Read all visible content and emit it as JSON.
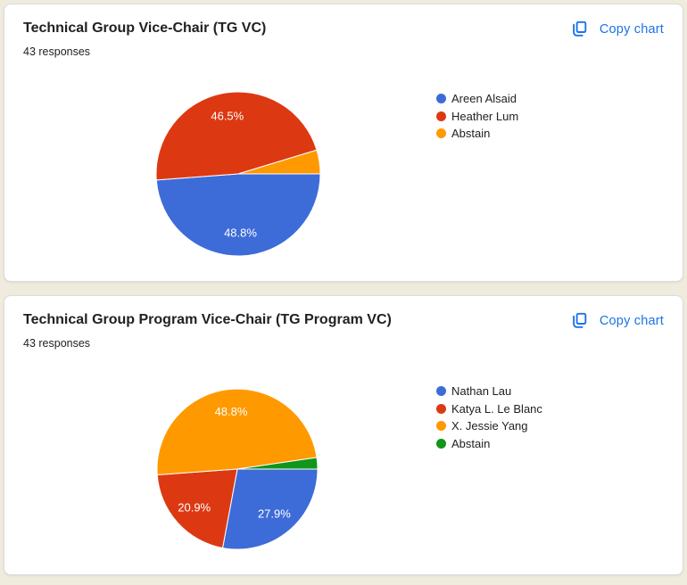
{
  "ui": {
    "page_background": "#F0ECDD",
    "card_background": "#FFFFFF",
    "card_border_color": "#DADCE0",
    "accent_blue": "#1A73E8",
    "title_color": "#202124",
    "slice_label_color": "#FFFFFF"
  },
  "cards": [
    {
      "title": "Technical Group Vice-Chair (TG VC)",
      "responses_text": "43 responses",
      "copy_button_label": "Copy chart"
    },
    {
      "title": "Technical Group Program Vice-Chair (TG Program VC)",
      "responses_text": "43 responses",
      "copy_button_label": "Copy chart"
    }
  ],
  "chart_data": [
    {
      "type": "pie",
      "title": "Technical Group Vice-Chair (TG VC)",
      "responses": 43,
      "start_angle": "east",
      "direction": "clockwise",
      "legend_position": "right",
      "slices": [
        {
          "label": "Areen Alsaid",
          "percent": 48.8,
          "display_label": "48.8%",
          "color": "#3D6CD8"
        },
        {
          "label": "Heather Lum",
          "percent": 46.5,
          "display_label": "46.5%",
          "color": "#DC3912"
        },
        {
          "label": "Abstain",
          "percent": 4.7,
          "display_label": "",
          "color": "#FF9900"
        }
      ]
    },
    {
      "type": "pie",
      "title": "Technical Group Program Vice-Chair (TG Program VC)",
      "responses": 43,
      "start_angle": "east",
      "direction": "clockwise",
      "legend_position": "right",
      "slices": [
        {
          "label": "Nathan Lau",
          "percent": 27.9,
          "display_label": "27.9%",
          "color": "#3D6CD8"
        },
        {
          "label": "Katya L. Le Blanc",
          "percent": 20.9,
          "display_label": "20.9%",
          "color": "#DC3912"
        },
        {
          "label": "X. Jessie Yang",
          "percent": 48.8,
          "display_label": "48.8%",
          "color": "#FF9900"
        },
        {
          "label": "Abstain",
          "percent": 2.3,
          "display_label": "",
          "color": "#109618"
        }
      ]
    }
  ]
}
